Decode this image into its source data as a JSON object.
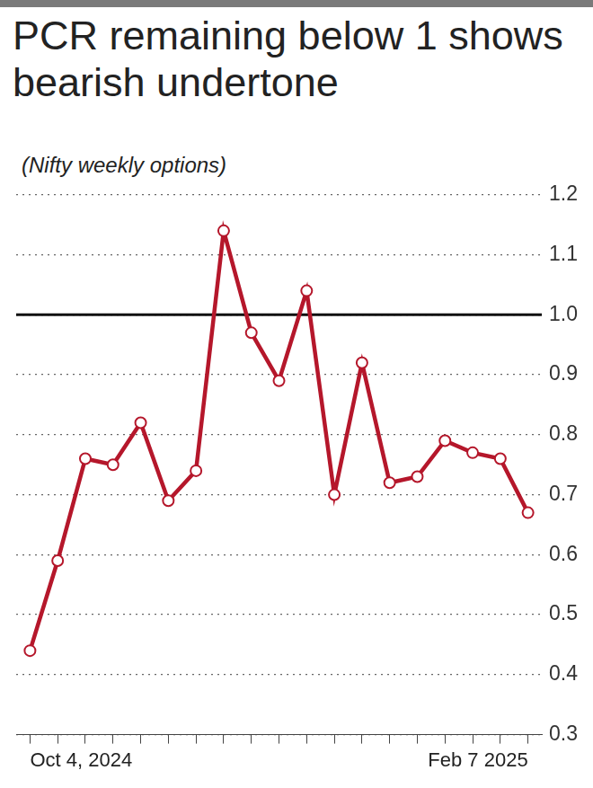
{
  "chart_data": {
    "type": "line",
    "title": "PCR remaining below 1 shows bearish undertone",
    "subtitle": "(Nifty weekly options)",
    "categories": [
      "Oct 4, 2024",
      null,
      null,
      null,
      null,
      null,
      null,
      null,
      null,
      null,
      null,
      null,
      null,
      null,
      null,
      null,
      null,
      null,
      "Feb 7 2025"
    ],
    "values": [
      0.44,
      0.59,
      0.76,
      0.75,
      0.82,
      0.69,
      0.74,
      1.14,
      0.97,
      0.89,
      1.04,
      0.7,
      0.92,
      0.72,
      0.73,
      0.79,
      0.77,
      0.76,
      0.67
    ],
    "color": "#b5172b",
    "marker": "circle",
    "ylim": [
      0.3,
      1.2
    ],
    "yticks": [
      0.3,
      0.4,
      0.5,
      0.6,
      0.7,
      0.8,
      0.9,
      {
        "value": 1,
        "label": "1.0"
      },
      1.1,
      1.2
    ],
    "reference_line": 1,
    "grid": true
  }
}
